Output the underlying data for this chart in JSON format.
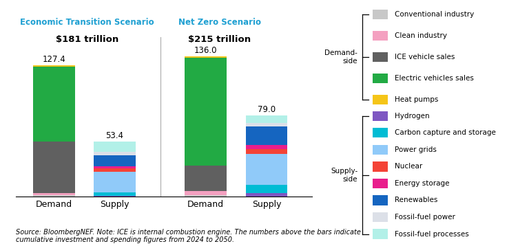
{
  "scenarios": [
    "Economic Transition Scenario",
    "Net Zero Scenario"
  ],
  "subtitles": [
    "$181 trillion",
    "$215 trillion"
  ],
  "bar_labels": [
    "Demand",
    "Supply",
    "Demand",
    "Supply"
  ],
  "bar_totals": [
    127.4,
    53.4,
    136.0,
    79.0
  ],
  "demand_side_labels": [
    "Conventional industry",
    "Clean industry",
    "ICE vehicle sales",
    "Electric vehicles sales",
    "Heat pumps"
  ],
  "supply_side_labels": [
    "Hydrogen",
    "Carbon capture and storage",
    "Power grids",
    "Nuclear",
    "Energy storage",
    "Renewables",
    "Fossil-fuel power",
    "Fossil-fuel processes"
  ],
  "demand_colors": [
    "#c8c8c8",
    "#f4a0c0",
    "#606060",
    "#22aa44",
    "#f5c518"
  ],
  "supply_colors": [
    "#7e57c2",
    "#00bcd4",
    "#90caf9",
    "#f44336",
    "#e91e8c",
    "#1565c0",
    "#dce0e8",
    "#b2f0e8"
  ],
  "ets_demand": [
    1.5,
    2.0,
    50.0,
    72.5,
    1.4
  ],
  "ets_supply": [
    1.0,
    3.0,
    20.0,
    3.5,
    2.0,
    11.0,
    3.0,
    9.9
  ],
  "nzs_demand": [
    1.5,
    4.0,
    25.0,
    104.0,
    1.5
  ],
  "nzs_supply": [
    3.5,
    8.0,
    30.0,
    5.0,
    3.5,
    18.0,
    3.5,
    7.5
  ],
  "source_text": "Source: BloombergNEF. Note: ICE is internal combustion engine. The numbers above the bars indicate\ncumulative investment and spending figures from 2024 to 2050.",
  "background_color": "#ffffff",
  "scenario_color": "#1fa0d2",
  "separator_color": "#aaaaaa"
}
